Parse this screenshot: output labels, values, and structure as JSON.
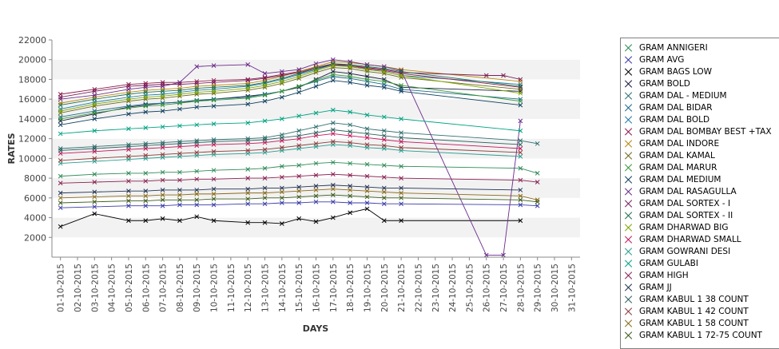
{
  "chart_data": {
    "type": "line",
    "xlabel": "DAYS",
    "ylabel": "RATES",
    "ylim": [
      0,
      22000
    ],
    "yticks": [
      2000,
      4000,
      6000,
      8000,
      10000,
      12000,
      14000,
      16000,
      18000,
      20000,
      22000
    ],
    "categories": [
      "01-10-2015",
      "02-10-2015",
      "03-10-2015",
      "04-10-2015",
      "05-10-2015",
      "06-10-2015",
      "07-10-2015",
      "08-10-2015",
      "09-10-2015",
      "10-10-2015",
      "11-10-2015",
      "12-10-2015",
      "13-10-2015",
      "14-10-2015",
      "15-10-2015",
      "16-10-2015",
      "17-10-2015",
      "18-10-2015",
      "19-10-2015",
      "20-10-2015",
      "21-10-2015",
      "22-10-2015",
      "23-10-2015",
      "24-10-2015",
      "25-10-2015",
      "26-10-2015",
      "27-10-2015",
      "28-10-2015",
      "29-10-2015",
      "30-10-2015",
      "31-10-2015"
    ],
    "grid_bands": true,
    "legend_position": "right",
    "series": [
      {
        "name": "GRAM ANNIGERI",
        "color": "#2e8b57",
        "values": [
          8200,
          null,
          8400,
          null,
          8500,
          8500,
          8600,
          8600,
          8700,
          8800,
          null,
          8900,
          9000,
          9200,
          9300,
          9500,
          9600,
          9500,
          9400,
          9300,
          9200,
          null,
          null,
          null,
          null,
          null,
          null,
          9000,
          8500,
          null,
          null
        ]
      },
      {
        "name": "GRAM AVG",
        "color": "#3a3aa8",
        "values": [
          5000,
          null,
          5100,
          null,
          5200,
          5200,
          5200,
          5300,
          5300,
          5300,
          null,
          5400,
          5400,
          5500,
          5500,
          5600,
          5600,
          5500,
          5500,
          5400,
          5400,
          null,
          null,
          null,
          null,
          null,
          null,
          5300,
          5200,
          null,
          null
        ]
      },
      {
        "name": "GRAM BAGS LOW",
        "color": "#000000",
        "values": [
          3100,
          null,
          4400,
          null,
          3700,
          3700,
          3900,
          3700,
          4100,
          3700,
          null,
          3500,
          3500,
          3400,
          3900,
          3600,
          4000,
          4500,
          4900,
          3700,
          3700,
          null,
          null,
          null,
          null,
          null,
          null,
          3700,
          null,
          null,
          null
        ]
      },
      {
        "name": "GRAM BOLD",
        "color": "#1a1a40",
        "values": [
          13800,
          null,
          14500,
          null,
          15200,
          15400,
          15600,
          15700,
          15800,
          16000,
          null,
          16300,
          16500,
          16800,
          17200,
          18000,
          18800,
          18600,
          18300,
          18000,
          17200,
          null,
          null,
          null,
          null,
          null,
          null,
          16800,
          null,
          null,
          null
        ]
      },
      {
        "name": "GRAM DAL - MEDIUM",
        "color": "#2f6f6f",
        "values": [
          11000,
          null,
          11200,
          null,
          11400,
          11500,
          11600,
          11700,
          11800,
          11900,
          null,
          12000,
          12100,
          12400,
          12800,
          13200,
          13600,
          13400,
          13000,
          12800,
          12600,
          null,
          null,
          null,
          null,
          null,
          null,
          11800,
          11500,
          null,
          null
        ]
      },
      {
        "name": "GRAM DAL BIDAR",
        "color": "#1e6b8c",
        "values": [
          14200,
          null,
          14800,
          null,
          15300,
          15500,
          15600,
          15700,
          15900,
          16000,
          null,
          16200,
          16500,
          16800,
          17300,
          17800,
          18300,
          18100,
          17800,
          17500,
          17000,
          null,
          null,
          null,
          null,
          null,
          null,
          16000,
          null,
          null,
          null
        ]
      },
      {
        "name": "GRAM DAL BOLD",
        "color": "#1f7ca6",
        "values": [
          15000,
          null,
          15700,
          null,
          16200,
          16400,
          16500,
          16700,
          16900,
          17000,
          null,
          17300,
          17600,
          18000,
          18500,
          19000,
          19500,
          19300,
          19000,
          18800,
          18400,
          null,
          null,
          null,
          null,
          null,
          null,
          17500,
          null,
          null,
          null
        ]
      },
      {
        "name": "GRAM DAL BOMBAY BEST +TAX",
        "color": "#8b1a4a",
        "values": [
          16500,
          null,
          17000,
          null,
          17500,
          17600,
          17700,
          17700,
          17800,
          17900,
          null,
          18000,
          18200,
          18500,
          18800,
          19200,
          19600,
          19400,
          19100,
          18900,
          18600,
          null,
          null,
          null,
          null,
          null,
          null,
          17200,
          null,
          null,
          null
        ]
      },
      {
        "name": "GRAM DAL INDORE",
        "color": "#b8860b",
        "values": [
          15600,
          null,
          16200,
          null,
          16700,
          16900,
          17000,
          17100,
          17300,
          17400,
          null,
          17600,
          17900,
          18300,
          18800,
          19300,
          19800,
          19700,
          19500,
          19300,
          19000,
          null,
          null,
          null,
          null,
          null,
          null,
          17800,
          null,
          null,
          null
        ]
      },
      {
        "name": "GRAM DAL KAMAL",
        "color": "#6b6b1a",
        "values": [
          14600,
          null,
          15300,
          null,
          15800,
          16000,
          16100,
          16300,
          16500,
          16600,
          null,
          16900,
          17200,
          17600,
          18100,
          18700,
          19200,
          19100,
          18800,
          18600,
          18200,
          null,
          null,
          null,
          null,
          null,
          null,
          17000,
          null,
          null,
          null
        ]
      },
      {
        "name": "GRAM DAL MARUR",
        "color": "#3c9a3c",
        "values": [
          14000,
          null,
          14600,
          null,
          15100,
          15300,
          15400,
          15600,
          15800,
          15900,
          null,
          16100,
          16400,
          16800,
          17300,
          17900,
          18500,
          18300,
          18000,
          17800,
          17400,
          null,
          null,
          null,
          null,
          null,
          null,
          15800,
          null,
          null,
          null
        ]
      },
      {
        "name": "GRAM DAL MEDIUM",
        "color": "#104060",
        "values": [
          13400,
          null,
          14000,
          null,
          14500,
          14700,
          14800,
          15000,
          15200,
          15300,
          null,
          15500,
          15800,
          16200,
          16700,
          17300,
          17900,
          17700,
          17400,
          17200,
          16800,
          null,
          null,
          null,
          null,
          null,
          null,
          15400,
          null,
          null,
          null
        ]
      },
      {
        "name": "GRAM DAL RASAGULLA",
        "color": "#6a2a8a",
        "values": [
          16000,
          null,
          16400,
          null,
          17000,
          17200,
          17300,
          17700,
          19300,
          19400,
          null,
          19500,
          18600,
          18800,
          19000,
          19600,
          20000,
          19800,
          19500,
          19300,
          18900,
          null,
          null,
          null,
          null,
          200,
          200,
          13800,
          null,
          null,
          null
        ]
      },
      {
        "name": "GRAM DAL SORTEX  - I",
        "color": "#7a1f5a",
        "values": [
          16200,
          null,
          16800,
          null,
          17300,
          17400,
          17500,
          17500,
          17600,
          17700,
          null,
          17900,
          18100,
          18400,
          18700,
          19100,
          19500,
          19400,
          19200,
          19000,
          18700,
          null,
          null,
          null,
          null,
          18400,
          18400,
          18000,
          null,
          null,
          null
        ]
      },
      {
        "name": "GRAM DAL SORTEX - II",
        "color": "#1f6f4f",
        "values": [
          15400,
          null,
          16000,
          null,
          16500,
          16700,
          16800,
          16900,
          17100,
          17200,
          null,
          17400,
          17700,
          18100,
          18600,
          19100,
          19600,
          19500,
          19300,
          19100,
          18800,
          null,
          null,
          null,
          null,
          null,
          null,
          17300,
          null,
          null,
          null
        ]
      },
      {
        "name": "GRAM DHARWAD BIG",
        "color": "#7fa600",
        "values": [
          14800,
          null,
          15500,
          null,
          16000,
          16200,
          16300,
          16500,
          16700,
          16800,
          null,
          17100,
          17400,
          17800,
          18300,
          18900,
          19400,
          19300,
          19000,
          18800,
          18400,
          null,
          null,
          null,
          null,
          null,
          null,
          16600,
          null,
          null,
          null
        ]
      },
      {
        "name": "GRAM DHARWAD SMALL",
        "color": "#c2185b",
        "values": [
          10500,
          null,
          10700,
          null,
          10900,
          11000,
          11100,
          11200,
          11300,
          11400,
          null,
          11500,
          11600,
          11800,
          12000,
          12300,
          12500,
          12300,
          12100,
          11900,
          11700,
          null,
          null,
          null,
          null,
          null,
          null,
          11000,
          null,
          null,
          null
        ]
      },
      {
        "name": "GRAM GOWRANI DESI",
        "color": "#2a9d8f",
        "values": [
          9500,
          null,
          9700,
          null,
          9900,
          10000,
          10100,
          10200,
          10300,
          10400,
          null,
          10500,
          10600,
          10800,
          11000,
          11200,
          11400,
          11300,
          11100,
          11000,
          10800,
          null,
          null,
          null,
          null,
          null,
          null,
          10200,
          null,
          null,
          null
        ]
      },
      {
        "name": "GRAM GULABI",
        "color": "#00a383",
        "values": [
          12500,
          null,
          12800,
          null,
          13000,
          13100,
          13200,
          13300,
          13400,
          13500,
          null,
          13600,
          13800,
          14000,
          14300,
          14600,
          14900,
          14700,
          14400,
          14200,
          14000,
          null,
          null,
          null,
          null,
          null,
          null,
          12800,
          null,
          null,
          null
        ]
      },
      {
        "name": "GRAM HIGH",
        "color": "#8a2050",
        "values": [
          7500,
          null,
          7600,
          null,
          7700,
          7700,
          7800,
          7800,
          7900,
          7900,
          null,
          8000,
          8000,
          8100,
          8200,
          8300,
          8400,
          8300,
          8200,
          8100,
          8000,
          null,
          null,
          null,
          null,
          null,
          null,
          7800,
          7600,
          null,
          null
        ]
      },
      {
        "name": "GRAM JJ",
        "color": "#223355",
        "values": [
          6500,
          null,
          6600,
          null,
          6700,
          6700,
          6800,
          6800,
          6800,
          6900,
          null,
          6900,
          7000,
          7000,
          7100,
          7200,
          7300,
          7200,
          7100,
          7000,
          7000,
          null,
          null,
          null,
          null,
          null,
          null,
          6800,
          null,
          null,
          null
        ]
      },
      {
        "name": "GRAM KABUL 1 38 COUNT",
        "color": "#2f5f5f",
        "values": [
          10800,
          null,
          11000,
          null,
          11200,
          11300,
          11400,
          11500,
          11600,
          11700,
          null,
          11800,
          11900,
          12100,
          12300,
          12600,
          12900,
          12700,
          12500,
          12300,
          12100,
          null,
          null,
          null,
          null,
          null,
          null,
          11400,
          null,
          null,
          null
        ]
      },
      {
        "name": "GRAM KABUL 1 42 COUNT",
        "color": "#8b3a3a",
        "values": [
          9800,
          null,
          10000,
          null,
          10200,
          10300,
          10400,
          10500,
          10600,
          10700,
          null,
          10800,
          10900,
          11100,
          11300,
          11500,
          11700,
          11600,
          11400,
          11300,
          11100,
          null,
          null,
          null,
          null,
          null,
          null,
          10600,
          null,
          null,
          null
        ]
      },
      {
        "name": "GRAM KABUL 1 58 COUNT",
        "color": "#8b6a1a",
        "values": [
          6000,
          null,
          6100,
          null,
          6200,
          6200,
          6300,
          6300,
          6400,
          6400,
          null,
          6500,
          6500,
          6600,
          6700,
          6800,
          6900,
          6800,
          6700,
          6600,
          6500,
          null,
          null,
          null,
          null,
          null,
          null,
          6200,
          5800,
          null,
          null
        ]
      },
      {
        "name": "GRAM KABUL 1 72-75 COUNT",
        "color": "#3a5a1a",
        "values": [
          5500,
          null,
          5600,
          null,
          5700,
          5700,
          5800,
          5800,
          5800,
          5900,
          null,
          5900,
          6000,
          6000,
          6100,
          6200,
          6300,
          6200,
          6100,
          6000,
          6000,
          null,
          null,
          null,
          null,
          null,
          null,
          5800,
          5600,
          null,
          null
        ]
      }
    ]
  }
}
